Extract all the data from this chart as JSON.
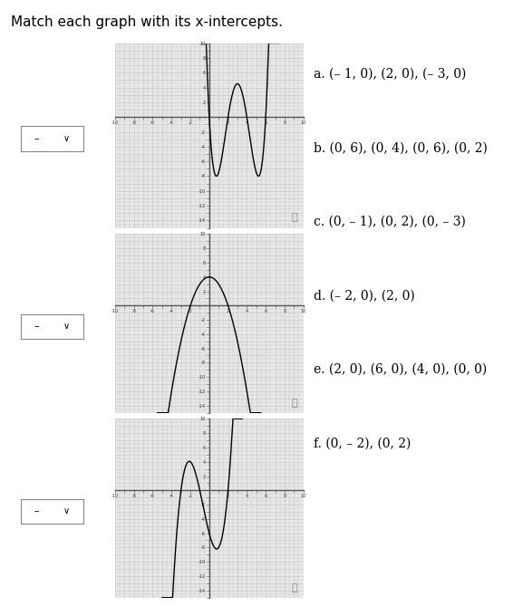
{
  "title": "Match each graph with its x-intercepts.",
  "options": [
    "a. (– 1, 0), (2, 0), (– 3, 0)",
    "b. (0, 6), (0, 4), (0, 6), (0, 2)",
    "c. (0, – 1), (0, 2), (0, – 3)",
    "d. (– 2, 0), (2, 0)",
    "e. (2, 0), (6, 0), (4, 0), (0, 0)",
    "f. (0, – 2), (0, 2)"
  ],
  "bg_color": "#e8e8e8",
  "line_color": "#000000",
  "grid_color": "#c8c8c8",
  "axis_color": "#888888",
  "xlim": [
    -10,
    10
  ],
  "ylim_g1": [
    -15,
    10
  ],
  "ylim_g2": [
    -15,
    10
  ],
  "ylim_g3": [
    -15,
    10
  ],
  "title_fontsize": 11,
  "option_fontsize": 10
}
